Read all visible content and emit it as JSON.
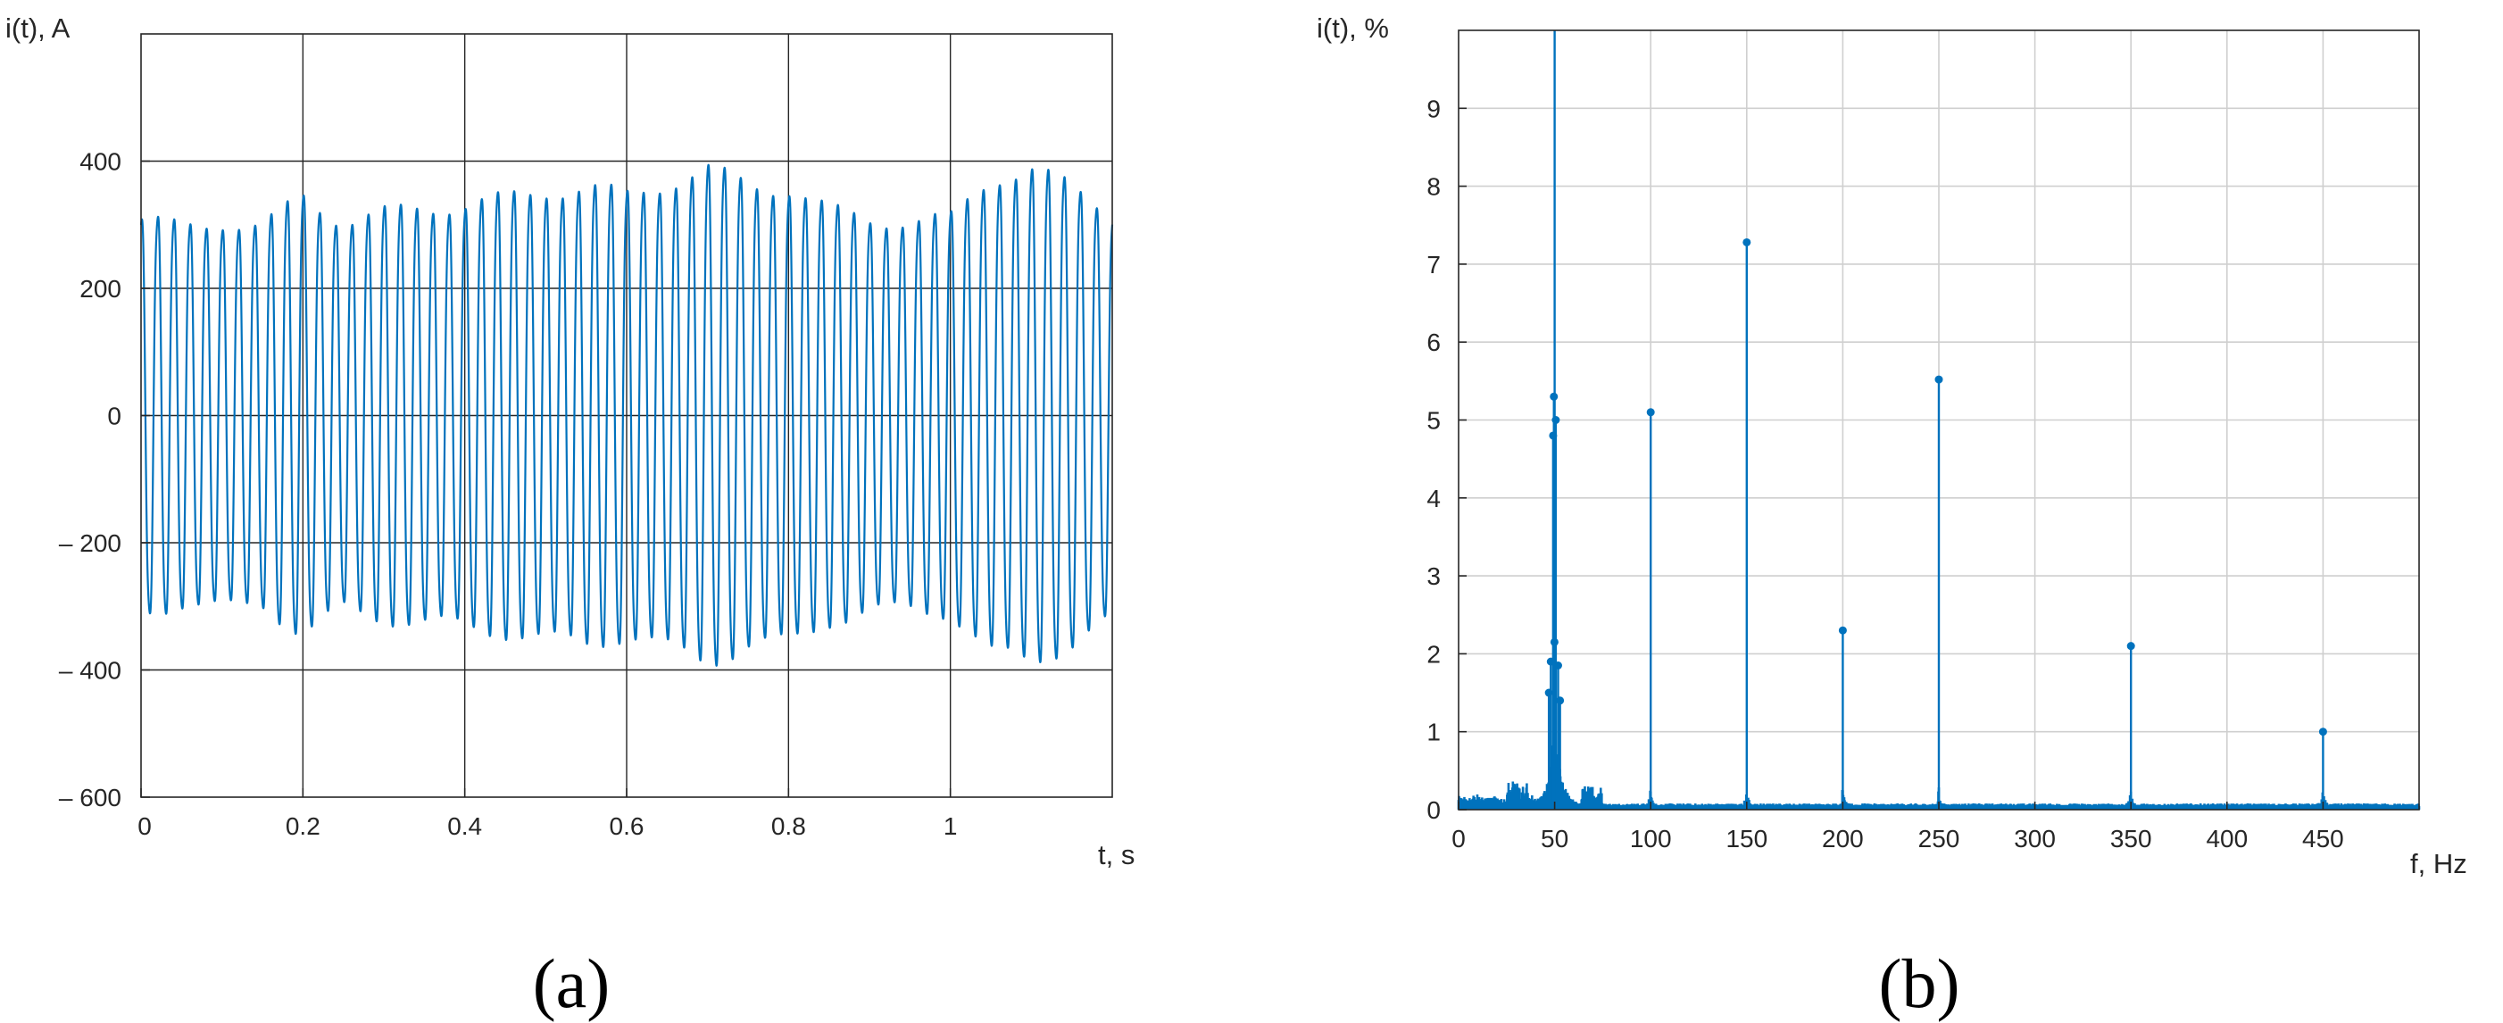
{
  "colors": {
    "series": "#0072bd",
    "axis": "#262626",
    "grid_a": "#262626",
    "grid_b": "#cfcfcf"
  },
  "chart_data": [
    {
      "type": "line",
      "panel_label": "(a)",
      "ylabel": "i(t), A",
      "xlabel": "t, s",
      "xlim": [
        0,
        1.2
      ],
      "ylim": [
        -600,
        600
      ],
      "x_ticks": [
        0,
        0.2,
        0.4,
        0.6,
        0.8,
        1
      ],
      "x_tick_labels": [
        "0",
        "0.2",
        "0.4",
        "0.6",
        "0.8",
        "1"
      ],
      "y_ticks": [
        -600,
        -400,
        -200,
        0,
        200,
        400
      ],
      "y_tick_labels": [
        "– 600",
        "– 400",
        "– 200",
        "0",
        "200",
        "400"
      ],
      "grid": true,
      "signal": {
        "frequency_hz": 50,
        "envelope_t": [
          0,
          0.05,
          0.1,
          0.15,
          0.2,
          0.25,
          0.3,
          0.35,
          0.4,
          0.45,
          0.5,
          0.55,
          0.6,
          0.65,
          0.7,
          0.75,
          0.8,
          0.85,
          0.9,
          0.95,
          1.0,
          1.05,
          1.1,
          1.15,
          1.2
        ],
        "envelope_amp": [
          345,
          330,
          340,
          330,
          385,
          340,
          355,
          365,
          370,
          380,
          395,
          400,
          385,
          410,
          430,
          405,
          400,
          360,
          345,
          340,
          345,
          420,
          430,
          400,
          360
        ]
      }
    },
    {
      "type": "bar",
      "panel_label": "(b)",
      "ylabel": "i(t), %",
      "xlabel": "f, Hz",
      "xlim": [
        0,
        500
      ],
      "ylim": [
        0,
        10
      ],
      "x_ticks": [
        0,
        50,
        100,
        150,
        200,
        250,
        300,
        350,
        400,
        450
      ],
      "x_tick_labels": [
        "0",
        "50",
        "100",
        "150",
        "200",
        "250",
        "300",
        "350",
        "400",
        "450"
      ],
      "y_ticks": [
        0,
        1,
        2,
        3,
        4,
        5,
        6,
        7,
        8,
        9
      ],
      "y_tick_labels": [
        "0",
        "1",
        "2",
        "3",
        "4",
        "5",
        "6",
        "7",
        "8",
        "9"
      ],
      "grid": true,
      "harmonics": [
        {
          "f": 50,
          "value": 10.0
        },
        {
          "f": 100,
          "value": 5.1
        },
        {
          "f": 150,
          "value": 7.28
        },
        {
          "f": 200,
          "value": 2.3
        },
        {
          "f": 250,
          "value": 5.52
        },
        {
          "f": 350,
          "value": 2.1
        },
        {
          "f": 450,
          "value": 1.0
        }
      ],
      "peak_cluster_50hz": [
        {
          "f": 49.2,
          "value": 4.8
        },
        {
          "f": 49.6,
          "value": 5.3
        },
        {
          "f": 50.6,
          "value": 5.0
        },
        {
          "f": 48.0,
          "value": 1.9
        },
        {
          "f": 51.8,
          "value": 1.85
        },
        {
          "f": 47.0,
          "value": 1.5
        },
        {
          "f": 52.8,
          "value": 1.4
        },
        {
          "f": 49.9,
          "value": 2.15
        }
      ]
    }
  ]
}
